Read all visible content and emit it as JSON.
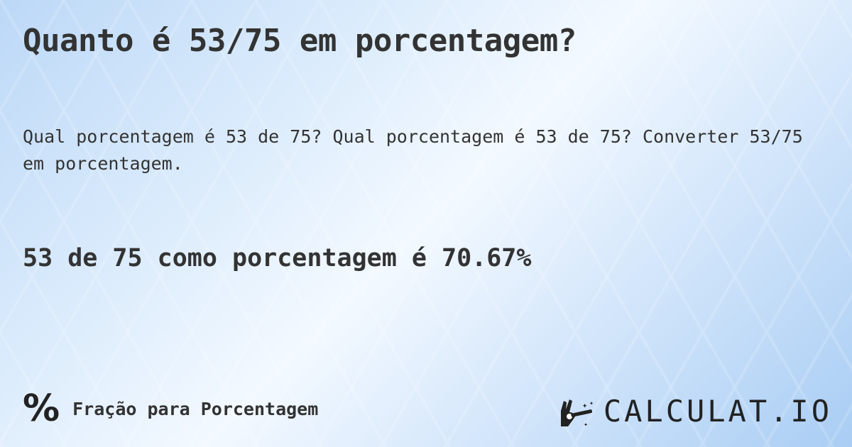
{
  "title": "Quanto é 53/75 em porcentagem?",
  "description": "Qual porcentagem é 53 de 75? Qual porcentagem é 53 de 75? Converter 53/75 em porcentagem.",
  "answer": "53 de 75 como porcentagem é 70.67%",
  "footer": {
    "icon": "percent-icon",
    "icon_glyph": "%",
    "label": "Fração para Porcentagem"
  },
  "logo": {
    "text": "CALCULAT.IO",
    "icon": "magic-hand-icon"
  }
}
